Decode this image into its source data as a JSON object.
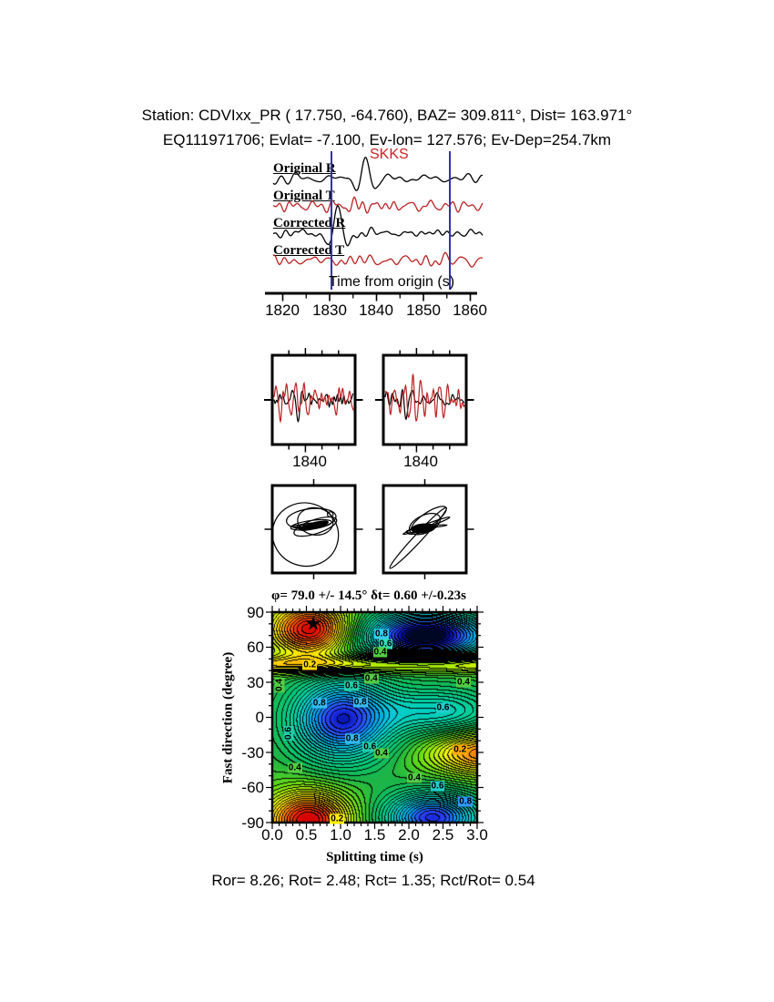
{
  "header": {
    "line1": "Station: CDVIxx_PR (  17.750,  -64.760), BAZ=  309.811°, Dist=  163.971°",
    "line2": "EQ111971706; Evlat=  -7.100, Ev-lon= 127.576; Ev-Dep=254.7km"
  },
  "colors": {
    "trace_red": "#bb2222",
    "window_blue": "#3333b2",
    "phase_red": "#cc2222",
    "frame_black": "#000000"
  },
  "stats_line": "Ror= 8.26; Rot= 2.48; Rct= 1.35; Rct/Rot= 0.54",
  "chart_data": {
    "seismogram_panel": {
      "type": "line",
      "phase_label": "SKKS",
      "xlabel": "Time from origin (s)",
      "x_ticks": [
        "1820",
        "1830",
        "1840",
        "1850",
        "1860"
      ],
      "x_minor_step_s": 5,
      "window_s": [
        1830.4,
        1855.6
      ],
      "traces": [
        {
          "label": "Original R",
          "color": "#000000",
          "seed": 11,
          "noise": 3.2,
          "bursts": [
            {
              "x0": 0.443,
              "sigma": 0.042,
              "amp": 23,
              "wl": 0.1,
              "ph": 1.5708
            }
          ]
        },
        {
          "label": "Original T",
          "color": "#bb2222",
          "seed": 12,
          "noise": 5.5,
          "tone": {
            "f": 11,
            "amp": 3.5,
            "ph": 1.0
          },
          "bursts": [
            {
              "x0": 0.46,
              "sigma": 0.12,
              "amp": 6,
              "wl": 0.1,
              "ph": -1.2
            }
          ]
        },
        {
          "label": "Corrected R",
          "color": "#000000",
          "seed": 13,
          "noise": 3.6,
          "bursts": [
            {
              "x0": 0.31,
              "sigma": 0.042,
              "amp": 26,
              "wl": 0.105,
              "ph": 1.5708
            }
          ]
        },
        {
          "label": "Corrected T",
          "color": "#bb2222",
          "seed": 14,
          "noise": 4.0,
          "tone": {
            "f": 11,
            "amp": 2.2,
            "ph": 2.0
          }
        }
      ]
    },
    "window_boxes": {
      "labels": [
        "1840",
        "1840"
      ],
      "boxes": [
        {
          "traces": [
            {
              "color": "#000000",
              "seed": 21,
              "noise": 5.0,
              "bursts": [
                {
                  "x0": 0.3,
                  "sigma": 0.05,
                  "amp": 24,
                  "wl": 0.14,
                  "ph": -1.5708
                }
              ]
            },
            {
              "color": "#bb2222",
              "seed": 22,
              "noise": 9,
              "tone": {
                "f": 8.5,
                "amp": 10,
                "ph": 0.5
              },
              "bursts": [
                {
                  "x0": 0.33,
                  "sigma": 0.12,
                  "amp": 8,
                  "wl": 0.09,
                  "ph": -1.0
                }
              ]
            }
          ]
        },
        {
          "traces": [
            {
              "color": "#000000",
              "seed": 23,
              "noise": 4.5,
              "bursts": [
                {
                  "x0": 0.27,
                  "sigma": 0.05,
                  "amp": 27,
                  "wl": 0.14,
                  "ph": -1.5708
                }
              ]
            },
            {
              "color": "#bb2222",
              "seed": 24,
              "noise": 10,
              "tone": {
                "f": 8.8,
                "amp": 11,
                "ph": 1.2
              },
              "bursts": [
                {
                  "x0": 0.3,
                  "sigma": 0.12,
                  "amp": 8,
                  "wl": 0.085,
                  "ph": -0.8
                }
              ]
            }
          ]
        }
      ]
    },
    "particle_motion": {
      "boxes": [
        {
          "ellipses": [
            [
              0.4,
              0.56,
              0.4,
              0.36,
              18,
              0
            ],
            [
              0.47,
              0.38,
              0.3,
              0.115,
              -6,
              0
            ],
            [
              0.52,
              0.41,
              0.215,
              0.155,
              8,
              0
            ],
            [
              0.52,
              0.47,
              0.27,
              0.08,
              -18,
              0
            ],
            [
              0.47,
              0.45,
              0.25,
              0.05,
              -8,
              0
            ],
            [
              0.5,
              0.46,
              0.18,
              0.035,
              -14,
              1
            ],
            [
              0.45,
              0.46,
              0.15,
              0.03,
              -4,
              0
            ],
            [
              0.43,
              0.46,
              0.21,
              0.012,
              -2,
              0
            ],
            [
              0.7,
              0.33,
              0.035,
              0.03,
              0,
              0
            ]
          ]
        },
        {
          "ellipses": [
            [
              0.42,
              0.6,
              0.5,
              0.045,
              -47,
              0
            ],
            [
              0.55,
              0.38,
              0.245,
              0.075,
              -33,
              0
            ],
            [
              0.5,
              0.44,
              0.2,
              0.1,
              -25,
              0
            ],
            [
              0.45,
              0.5,
              0.17,
              0.04,
              -15,
              0
            ],
            [
              0.48,
              0.49,
              0.14,
              0.05,
              -5,
              1
            ],
            [
              0.46,
              0.5,
              0.19,
              0.025,
              -10,
              0
            ],
            [
              0.55,
              0.47,
              0.22,
              0.012,
              -5,
              0
            ],
            [
              0.52,
              0.46,
              0.3,
              0.02,
              -20,
              0
            ]
          ]
        }
      ]
    },
    "contour": {
      "type": "heatmap",
      "title": "φ= 79.0 +/- 14.5° δt= 0.60 +/-0.23s",
      "xlabel": "Splitting time (s)",
      "ylabel": "Fast direction (degree)",
      "xlim": [
        0,
        3
      ],
      "ylim": [
        -90,
        90
      ],
      "xticks": [
        "0.0",
        "0.5",
        "1.0",
        "1.5",
        "2.0",
        "2.5",
        "3.0"
      ],
      "yticks": [
        "90",
        "60",
        "30",
        "0",
        "-30",
        "-60",
        "-90"
      ],
      "best_fit": {
        "phi_deg": 79.0,
        "phi_err_deg": 14.5,
        "dt_s": 0.6,
        "dt_err_s": 0.23
      },
      "star": {
        "t": 0.6,
        "phi": 79.0,
        "glyph": "★"
      },
      "contour_interval": 0.025,
      "base": 0.45,
      "blobs": [
        [
          0.57,
          75,
          -0.46,
          0.42,
          16
        ],
        [
          0.53,
          -88,
          -0.46,
          0.42,
          17
        ],
        [
          3.1,
          -31,
          -0.33,
          0.55,
          13
        ],
        [
          1.02,
          -2,
          0.47,
          0.5,
          24
        ],
        [
          2.45,
          5,
          0.22,
          0.6,
          14
        ],
        [
          2.25,
          70,
          0.58,
          0.65,
          14
        ],
        [
          2.35,
          -86,
          0.46,
          0.48,
          15
        ],
        [
          1.5,
          45,
          -0.22,
          5.0,
          5.5
        ]
      ],
      "colormap": [
        [
          0.0,
          "#d40000"
        ],
        [
          0.06,
          "#f03000"
        ],
        [
          0.13,
          "#ff7a00"
        ],
        [
          0.2,
          "#ffc800"
        ],
        [
          0.26,
          "#f4f400"
        ],
        [
          0.33,
          "#b4ee00"
        ],
        [
          0.4,
          "#64dc14"
        ],
        [
          0.48,
          "#1eb446"
        ],
        [
          0.56,
          "#00c878"
        ],
        [
          0.64,
          "#00d2aa"
        ],
        [
          0.72,
          "#00c8dc"
        ],
        [
          0.8,
          "#00a0f0"
        ],
        [
          0.86,
          "#2858ff"
        ],
        [
          0.9,
          "#2233ee"
        ],
        [
          0.94,
          "#0011aa"
        ],
        [
          1.0,
          "#000618"
        ]
      ],
      "labels": [
        [
          0.55,
          45,
          "0.2",
          "#ffd800",
          0
        ],
        [
          1.6,
          71,
          "0.8",
          "#33ccee",
          0
        ],
        [
          1.66,
          63,
          "0.6",
          "#33ddbb",
          0
        ],
        [
          1.58,
          56,
          "0.4",
          "#55cc44",
          0
        ],
        [
          0.1,
          28,
          "0.4",
          "#55cc44",
          90
        ],
        [
          1.45,
          33,
          "0.4",
          "#55cc44",
          0
        ],
        [
          1.16,
          27,
          "0.6",
          "#22ccaa",
          0
        ],
        [
          2.8,
          30,
          "0.4",
          "#55cc44",
          0
        ],
        [
          0.69,
          12,
          "0.8",
          "#33bbee",
          0
        ],
        [
          1.29,
          13,
          "0.8",
          "#33bbee",
          0
        ],
        [
          2.5,
          8,
          "0.6",
          "#22cccc",
          0
        ],
        [
          0.24,
          -14,
          "0.6",
          "#22ccaa",
          90
        ],
        [
          1.17,
          -18,
          "0.8",
          "#33bbee",
          0
        ],
        [
          1.43,
          -25,
          "0.6",
          "#22ccaa",
          0
        ],
        [
          1.6,
          -31,
          "0.4",
          "#55cc44",
          0
        ],
        [
          2.75,
          -28,
          "0.2",
          "#ffaa00",
          0
        ],
        [
          0.33,
          -43,
          "0.4",
          "#55cc44",
          0
        ],
        [
          2.08,
          -52,
          "0.4",
          "#55cc44",
          0
        ],
        [
          2.42,
          -59,
          "0.6",
          "#22cccc",
          0
        ],
        [
          2.83,
          -72,
          "0.8",
          "#3399ff",
          0
        ],
        [
          0.95,
          -87,
          "0.2",
          "#ffee00",
          0
        ]
      ]
    }
  }
}
